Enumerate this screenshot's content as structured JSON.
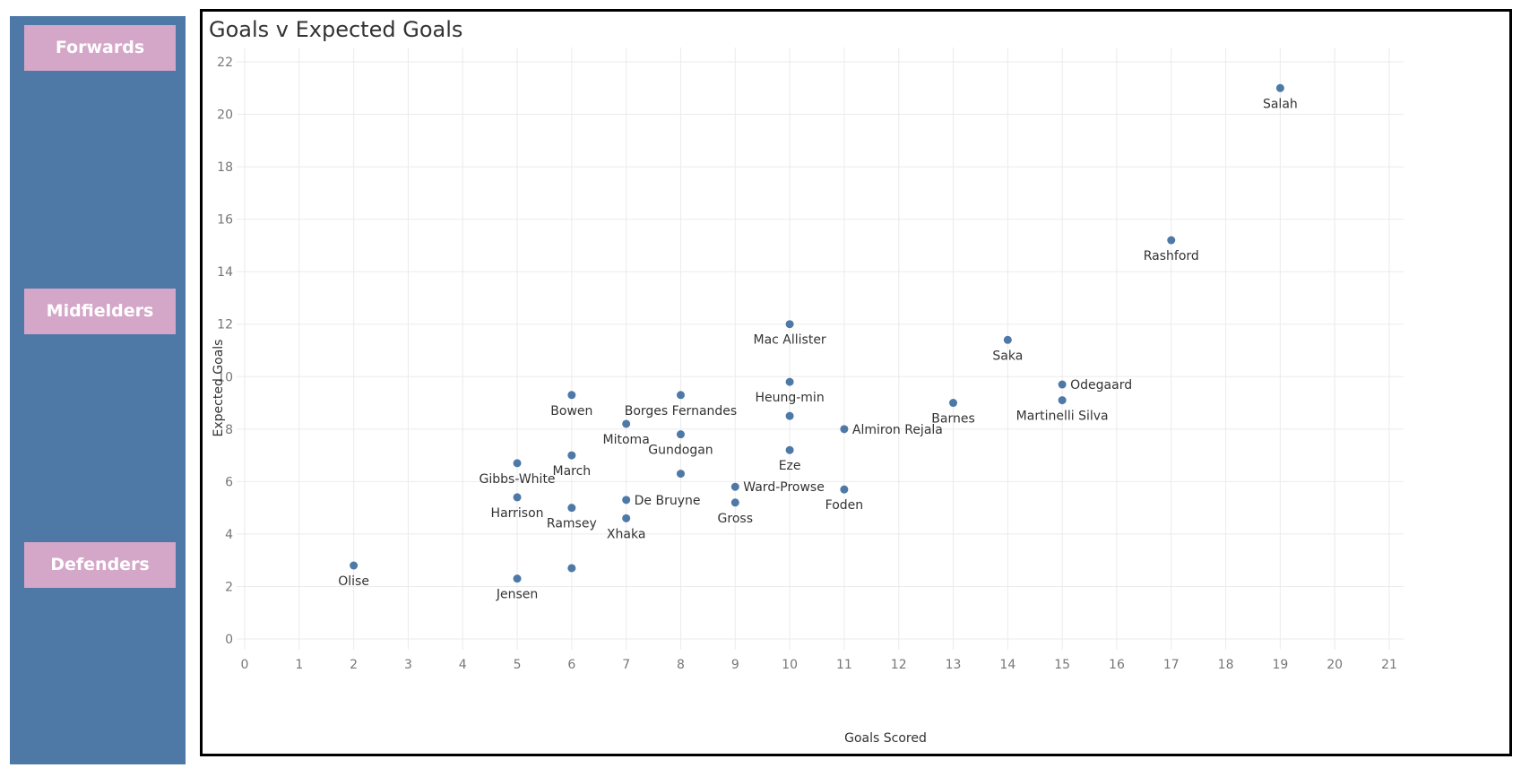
{
  "sidebar": {
    "background": "#4e79a7",
    "button_color": "#d4a6c8",
    "buttons": [
      {
        "label": "Forwards"
      },
      {
        "label": "Midfielders"
      },
      {
        "label": "Defenders"
      }
    ]
  },
  "chart_data": {
    "type": "scatter",
    "title": "Goals v Expected Goals",
    "xlabel": "Goals Scored",
    "ylabel": "Expected Goals",
    "xlim": [
      0,
      21
    ],
    "ylim": [
      0,
      22
    ],
    "xticks": [
      0,
      1,
      2,
      3,
      4,
      5,
      6,
      7,
      8,
      9,
      10,
      11,
      12,
      13,
      14,
      15,
      16,
      17,
      18,
      19,
      20,
      21
    ],
    "yticks": [
      0,
      2,
      4,
      6,
      8,
      10,
      12,
      14,
      16,
      18,
      20,
      22
    ],
    "grid": true,
    "point_color": "#4e79a7",
    "points": [
      {
        "label": "Salah",
        "x": 19,
        "y": 21.0
      },
      {
        "label": "Rashford",
        "x": 17,
        "y": 15.2
      },
      {
        "label": "Mac Allister",
        "x": 10,
        "y": 12.0
      },
      {
        "label": "Saka",
        "x": 14,
        "y": 11.4
      },
      {
        "label": "Odegaard",
        "x": 15,
        "y": 9.7
      },
      {
        "label": "Heung-min",
        "x": 10,
        "y": 9.8
      },
      {
        "label": "Bowen",
        "x": 6,
        "y": 9.3
      },
      {
        "label": "Borges Fernandes",
        "x": 8,
        "y": 9.3
      },
      {
        "label": "Martinelli Silva",
        "x": 15,
        "y": 9.1
      },
      {
        "label": "Barnes",
        "x": 13,
        "y": 9.0
      },
      {
        "label": "",
        "x": 10,
        "y": 8.5
      },
      {
        "label": "Mitoma",
        "x": 7,
        "y": 8.2
      },
      {
        "label": "Almiron Rejala",
        "x": 11,
        "y": 8.0
      },
      {
        "label": "Gundogan",
        "x": 8,
        "y": 7.8
      },
      {
        "label": "Eze",
        "x": 10,
        "y": 7.2
      },
      {
        "label": "March",
        "x": 6,
        "y": 7.0
      },
      {
        "label": "Gibbs-White",
        "x": 5,
        "y": 6.7
      },
      {
        "label": "",
        "x": 8,
        "y": 6.3
      },
      {
        "label": "Ward-Prowse",
        "x": 9,
        "y": 5.8
      },
      {
        "label": "Foden",
        "x": 11,
        "y": 5.7
      },
      {
        "label": "Harrison",
        "x": 5,
        "y": 5.4
      },
      {
        "label": "De Bruyne",
        "x": 7,
        "y": 5.3
      },
      {
        "label": "Gross",
        "x": 9,
        "y": 5.2
      },
      {
        "label": "Ramsey",
        "x": 6,
        "y": 5.0
      },
      {
        "label": "Xhaka",
        "x": 7,
        "y": 4.6
      },
      {
        "label": "Olise",
        "x": 2,
        "y": 2.8
      },
      {
        "label": "",
        "x": 6,
        "y": 2.7
      },
      {
        "label": "Jensen",
        "x": 5,
        "y": 2.3
      }
    ]
  }
}
